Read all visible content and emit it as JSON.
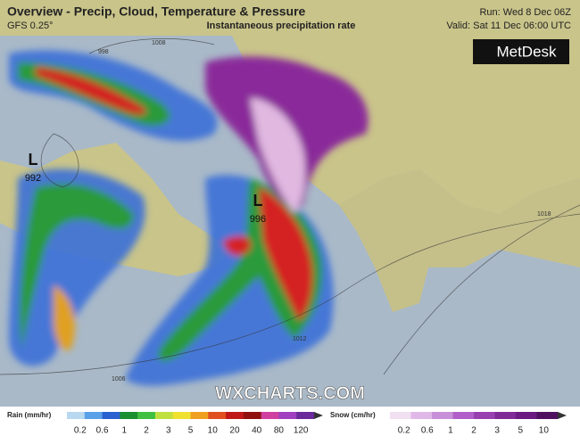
{
  "header": {
    "title": "Overview - Precip, Cloud, Temperature & Pressure",
    "model": "GFS 0.25°",
    "subtitle": "Instantaneous precipitation rate",
    "run": "Run: Wed 8 Dec 06Z",
    "valid": "Valid: Sat 11 Dec 06:00 UTC"
  },
  "logo": "MetDesk",
  "watermark": "WXCHARTS.COM",
  "pressure_centers": [
    {
      "symbol": "L",
      "value": "992"
    },
    {
      "symbol": "L",
      "value": "996"
    }
  ],
  "isobar_labels": [
    "1008",
    "998",
    "1006",
    "1012",
    "1018"
  ],
  "legend": {
    "rain_title": "Rain (mm/hr)",
    "rain_ticks": [
      0.2,
      0.6,
      1,
      2,
      3,
      5,
      10,
      20,
      40,
      80,
      120
    ],
    "snow_title": "Snow (cm/hr)",
    "snow_ticks": [
      0.2,
      0.6,
      1,
      2,
      3,
      5,
      10
    ]
  }
}
